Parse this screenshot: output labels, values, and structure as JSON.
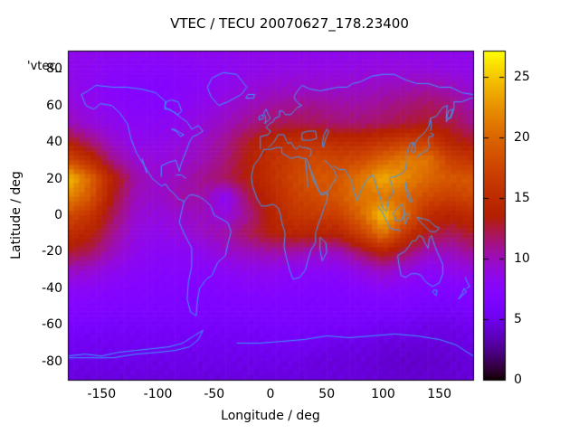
{
  "title": "VTEC / TECU 20070627_178.23400",
  "key_label": "'vtec_",
  "axes": {
    "x": {
      "label": "Longitude / deg",
      "range": [
        -180,
        180
      ],
      "ticks": [
        -150,
        -100,
        -50,
        0,
        50,
        100,
        150
      ]
    },
    "y": {
      "label": "Latitude / deg",
      "range": [
        -90,
        90
      ],
      "ticks": [
        80,
        60,
        40,
        20,
        0,
        -20,
        -40,
        -60,
        -80
      ]
    },
    "colorbar": {
      "range": [
        0,
        27.2
      ],
      "ticks": [
        0,
        5,
        10,
        15,
        20,
        25
      ]
    }
  },
  "colors": {
    "coastline": "#3a9bff",
    "border": "#000000",
    "background": "#ffffff",
    "text": "#000000",
    "palette_stops": {
      "0": "#000000",
      "5": "#6d02e9",
      "10": "#a2129b",
      "15": "#bd2c00",
      "20": "#db6600",
      "25": "#f5c700",
      "27": "#fdf200"
    }
  },
  "chart_data": {
    "type": "heatmap",
    "title": "VTEC / TECU 20070627_178.23400",
    "xlabel": "Longitude / deg",
    "ylabel": "Latitude / deg",
    "units": "TECU",
    "x_range": [
      -180,
      180
    ],
    "y_range": [
      -90,
      90
    ],
    "color_range": [
      0,
      27.2
    ],
    "palette": "gnuplot rgbformulae 7,5,15 (black-violet-magenta-red-orange-yellow)",
    "cell_size_deg": [
      5,
      2.5
    ],
    "grid_lon": [
      -180,
      -160,
      -140,
      -120,
      -100,
      -80,
      -60,
      -40,
      -20,
      0,
      20,
      40,
      60,
      80,
      100,
      120,
      140,
      160,
      180
    ],
    "grid_lat": [
      90,
      80,
      70,
      60,
      50,
      40,
      30,
      20,
      10,
      0,
      -10,
      -20,
      -30,
      -40,
      -50,
      -60,
      -70,
      -80,
      -90
    ],
    "values": [
      [
        8.5,
        8.5,
        8.3,
        8.2,
        8.2,
        8.2,
        8.3,
        8.4,
        8.5,
        8.5,
        8.5,
        8.5,
        8.5,
        8.6,
        8.7,
        8.7,
        8.6,
        8.5,
        8.5
      ],
      [
        8.5,
        8.2,
        7.8,
        7.6,
        7.5,
        7.7,
        8.0,
        8.2,
        8.5,
        8.7,
        8.8,
        8.8,
        8.8,
        8.9,
        9.0,
        9.0,
        9.0,
        8.8,
        8.6
      ],
      [
        8.8,
        8.2,
        7.6,
        7.2,
        7.2,
        7.5,
        8.0,
        8.5,
        9.0,
        9.5,
        9.6,
        9.6,
        9.6,
        9.7,
        10.0,
        10.2,
        10.5,
        10.0,
        9.2
      ],
      [
        9.2,
        8.6,
        8.0,
        7.5,
        7.5,
        8.0,
        8.5,
        9.2,
        10.0,
        10.6,
        11.0,
        11.0,
        10.6,
        10.6,
        11.0,
        11.5,
        12.0,
        11.5,
        10.2
      ],
      [
        10.2,
        9.2,
        8.5,
        8.0,
        8.0,
        8.5,
        9.2,
        10.0,
        11.0,
        12.0,
        12.2,
        12.0,
        11.6,
        11.6,
        12.0,
        12.5,
        13.0,
        12.5,
        11.0
      ],
      [
        13.5,
        11.5,
        9.5,
        8.5,
        8.5,
        9.0,
        9.8,
        11.0,
        13.0,
        14.5,
        15.5,
        15.5,
        15.0,
        15.0,
        16.0,
        17.0,
        17.0,
        14.0,
        13.0
      ],
      [
        18.0,
        15.0,
        11.0,
        9.5,
        9.0,
        9.5,
        10.2,
        11.5,
        13.5,
        15.5,
        17.0,
        18.0,
        17.5,
        18.0,
        20.0,
        21.5,
        21.0,
        17.0,
        16.0
      ],
      [
        25.0,
        20.0,
        14.0,
        10.5,
        9.5,
        10.0,
        11.0,
        12.0,
        13.5,
        15.5,
        17.5,
        19.0,
        19.0,
        21.0,
        24.0,
        22.0,
        20.0,
        19.0,
        19.0
      ],
      [
        22.0,
        19.0,
        13.0,
        10.0,
        9.5,
        10.5,
        10.5,
        8.0,
        12.0,
        14.5,
        17.0,
        18.0,
        19.0,
        21.0,
        21.0,
        20.0,
        18.0,
        17.0,
        18.0
      ],
      [
        18.0,
        16.0,
        12.0,
        9.5,
        9.0,
        9.5,
        10.0,
        9.0,
        11.0,
        14.0,
        16.0,
        16.5,
        17.0,
        20.0,
        25.0,
        20.0,
        15.0,
        14.0,
        15.0
      ],
      [
        15.0,
        14.0,
        11.0,
        9.0,
        8.5,
        9.0,
        9.8,
        10.5,
        12.0,
        13.5,
        14.0,
        14.0,
        14.0,
        17.0,
        21.0,
        16.0,
        13.0,
        12.0,
        13.0
      ],
      [
        13.0,
        12.0,
        10.0,
        8.5,
        8.0,
        8.0,
        8.5,
        9.5,
        10.0,
        10.5,
        10.5,
        10.0,
        10.0,
        12.0,
        14.0,
        12.0,
        10.0,
        10.0,
        11.0
      ],
      [
        10.0,
        9.5,
        8.5,
        7.8,
        7.5,
        7.5,
        7.6,
        8.0,
        8.5,
        8.5,
        8.0,
        8.0,
        8.0,
        9.0,
        10.0,
        9.0,
        8.0,
        8.5,
        9.0
      ],
      [
        8.2,
        8.0,
        7.5,
        7.2,
        7.0,
        7.0,
        7.0,
        7.2,
        7.5,
        7.5,
        7.2,
        7.0,
        7.0,
        7.5,
        8.0,
        7.5,
        7.0,
        7.0,
        7.5
      ],
      [
        7.0,
        7.0,
        6.8,
        6.6,
        6.5,
        6.5,
        6.5,
        6.5,
        6.6,
        6.6,
        6.5,
        6.5,
        6.5,
        6.5,
        6.5,
        6.5,
        6.0,
        6.0,
        6.5
      ],
      [
        6.2,
        6.2,
        6.0,
        6.0,
        6.0,
        6.0,
        6.0,
        6.0,
        6.0,
        6.2,
        6.2,
        6.0,
        6.0,
        6.0,
        5.5,
        5.5,
        5.0,
        5.0,
        5.5
      ],
      [
        5.5,
        5.5,
        5.5,
        5.5,
        5.5,
        5.5,
        5.5,
        5.5,
        5.5,
        5.6,
        5.6,
        5.5,
        5.0,
        5.0,
        4.6,
        4.5,
        4.5,
        4.5,
        5.0
      ],
      [
        5.0,
        5.0,
        5.0,
        5.0,
        5.0,
        5.0,
        5.0,
        5.0,
        5.0,
        5.0,
        5.0,
        4.6,
        4.5,
        4.5,
        4.2,
        4.0,
        4.0,
        4.2,
        4.5
      ],
      [
        4.6,
        4.6,
        4.6,
        4.6,
        4.6,
        4.6,
        4.6,
        4.6,
        4.6,
        4.6,
        4.6,
        4.6,
        4.5,
        4.5,
        4.2,
        4.2,
        4.2,
        4.2,
        4.5
      ]
    ]
  }
}
